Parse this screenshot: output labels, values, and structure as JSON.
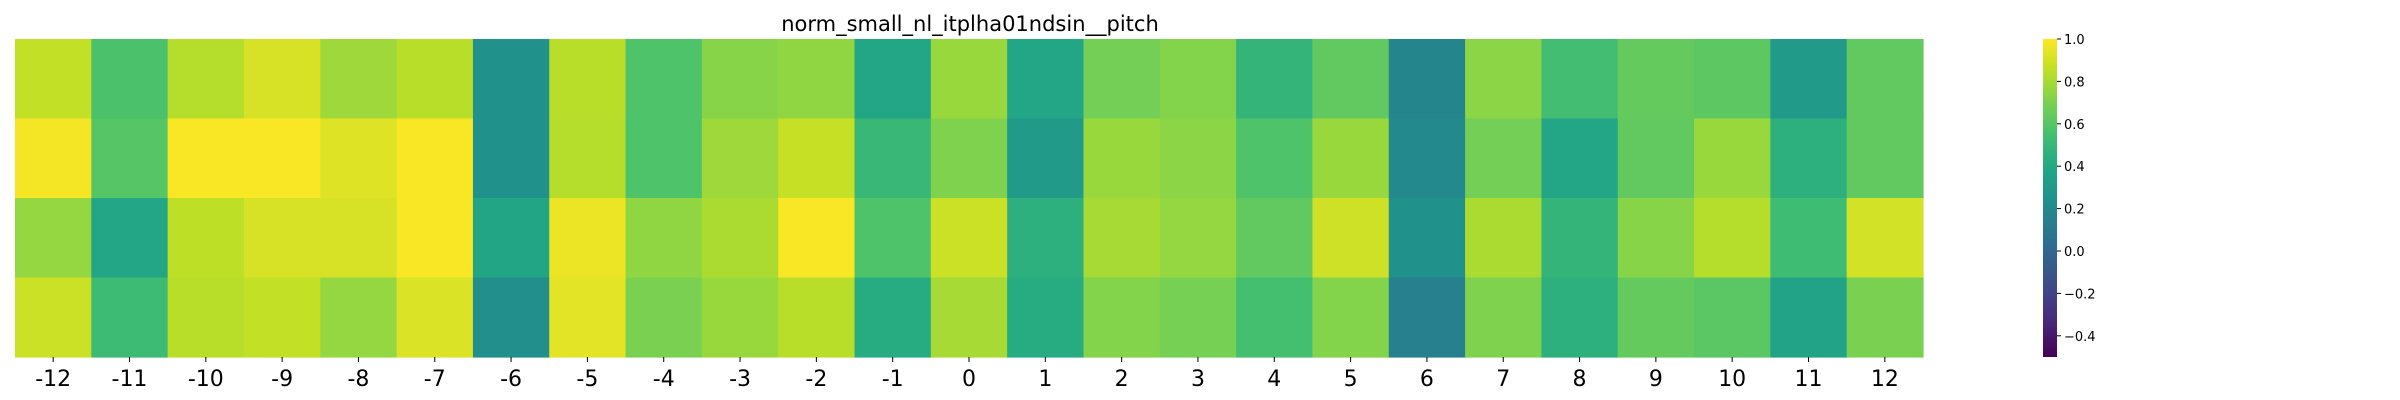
{
  "chart_data": {
    "type": "heatmap",
    "title": "norm_small_nl_itplha01ndsin__pitch",
    "xlabel": "",
    "ylabel": "",
    "x_categories": [
      "-12",
      "-11",
      "-10",
      "-9",
      "-8",
      "-7",
      "-6",
      "-5",
      "-4",
      "-3",
      "-2",
      "-1",
      "0",
      "1",
      "2",
      "3",
      "4",
      "5",
      "6",
      "7",
      "8",
      "9",
      "10",
      "11",
      "12"
    ],
    "row_count": 4,
    "values": [
      [
        0.86,
        0.57,
        0.83,
        0.91,
        0.78,
        0.84,
        0.25,
        0.84,
        0.58,
        0.73,
        0.75,
        0.39,
        0.77,
        0.39,
        0.68,
        0.72,
        0.48,
        0.63,
        0.18,
        0.74,
        0.54,
        0.64,
        0.62,
        0.31,
        0.63
      ],
      [
        0.98,
        0.6,
        0.99,
        0.99,
        0.93,
        0.99,
        0.25,
        0.83,
        0.58,
        0.78,
        0.87,
        0.5,
        0.71,
        0.31,
        0.77,
        0.74,
        0.58,
        0.77,
        0.2,
        0.68,
        0.39,
        0.63,
        0.77,
        0.45,
        0.63
      ],
      [
        0.76,
        0.39,
        0.85,
        0.91,
        0.91,
        0.99,
        0.38,
        0.96,
        0.75,
        0.81,
        0.99,
        0.58,
        0.88,
        0.45,
        0.8,
        0.76,
        0.63,
        0.89,
        0.25,
        0.81,
        0.48,
        0.73,
        0.83,
        0.53,
        0.9
      ],
      [
        0.88,
        0.52,
        0.84,
        0.86,
        0.76,
        0.92,
        0.24,
        0.94,
        0.7,
        0.77,
        0.84,
        0.42,
        0.8,
        0.42,
        0.72,
        0.69,
        0.55,
        0.72,
        0.15,
        0.71,
        0.45,
        0.64,
        0.61,
        0.36,
        0.7
      ]
    ],
    "colorbar": {
      "min": -0.5,
      "max": 1.0,
      "ticks": [
        1.0,
        0.8,
        0.6,
        0.4,
        0.2,
        0.0,
        -0.2,
        -0.4
      ],
      "tick_labels": [
        "1.0",
        "0.8",
        "0.6",
        "0.4",
        "0.2",
        "0.0",
        "−0.2",
        "−0.4"
      ]
    },
    "colormap": "viridis",
    "grid": false
  }
}
